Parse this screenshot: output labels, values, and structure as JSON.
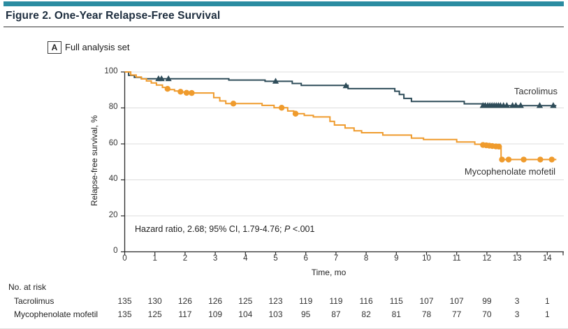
{
  "figure": {
    "title": "Figure 2. One-Year Relapse-Free Survival",
    "panel_label": "A",
    "panel_title": "Full analysis set",
    "accent_color": "#2B8CA1",
    "rule_color": "#3a3a3a"
  },
  "chart_data": {
    "type": "line",
    "subtype": "kaplan_meier_step",
    "xlabel": "Time, mo",
    "ylabel": "Relapse-free survival, %",
    "xlim": [
      0,
      14
    ],
    "ylim": [
      0,
      100
    ],
    "xticks": [
      0,
      1,
      2,
      3,
      4,
      5,
      6,
      7,
      8,
      9,
      10,
      11,
      12,
      13,
      14
    ],
    "yticks": [
      0,
      20,
      40,
      60,
      80,
      100
    ],
    "x_end": 14.3,
    "grid": "horizontal_light",
    "gridline_color": "#DCDCDC",
    "axis_color": "#2B2B2B",
    "annotation": {
      "text_main": "Hazard ratio, 2.68; 95% CI, 1.79-4.76; ",
      "text_italic": "P",
      "text_tail": " <.001"
    },
    "series": [
      {
        "name": "Tacrolimus",
        "color": "#2E4C59",
        "marker": "triangle",
        "steps": [
          [
            0,
            100
          ],
          [
            0.13,
            98.1
          ],
          [
            0.32,
            97.0
          ],
          [
            0.55,
            96.2
          ],
          [
            3.45,
            95.5
          ],
          [
            4.65,
            94.8
          ],
          [
            5.55,
            93.6
          ],
          [
            5.85,
            92.5
          ],
          [
            7.4,
            90.7
          ],
          [
            8.95,
            89.3
          ],
          [
            9.1,
            87.5
          ],
          [
            9.25,
            85.3
          ],
          [
            9.5,
            83.6
          ],
          [
            11.25,
            82.3
          ],
          [
            11.9,
            81.3
          ]
        ],
        "censor_marks": [
          [
            1.12,
            96.2
          ],
          [
            1.22,
            96.2
          ],
          [
            1.45,
            96.2
          ],
          [
            5.0,
            94.8
          ],
          [
            7.33,
            92.3
          ],
          [
            11.87,
            81.3
          ],
          [
            11.95,
            81.3
          ],
          [
            12.03,
            81.3
          ],
          [
            12.1,
            81.3
          ],
          [
            12.17,
            81.3
          ],
          [
            12.24,
            81.3
          ],
          [
            12.31,
            81.3
          ],
          [
            12.38,
            81.3
          ],
          [
            12.45,
            81.3
          ],
          [
            12.55,
            81.3
          ],
          [
            12.66,
            81.3
          ],
          [
            12.85,
            81.3
          ],
          [
            12.96,
            81.3
          ],
          [
            13.12,
            81.3
          ],
          [
            13.75,
            81.3
          ],
          [
            14.2,
            81.3
          ]
        ]
      },
      {
        "name": "Mycophenolate mofetil",
        "color": "#EF9B2D",
        "marker": "circle",
        "steps": [
          [
            0,
            100
          ],
          [
            0.2,
            98.3
          ],
          [
            0.38,
            97.2
          ],
          [
            0.55,
            96.1
          ],
          [
            0.72,
            95.0
          ],
          [
            0.88,
            93.9
          ],
          [
            1.05,
            92.7
          ],
          [
            1.25,
            91.4
          ],
          [
            1.45,
            90.2
          ],
          [
            1.65,
            89.4
          ],
          [
            1.85,
            88.8
          ],
          [
            2.05,
            88.3
          ],
          [
            2.95,
            85.7
          ],
          [
            3.15,
            83.9
          ],
          [
            3.35,
            82.4
          ],
          [
            4.55,
            81.4
          ],
          [
            4.95,
            80.1
          ],
          [
            5.4,
            78.3
          ],
          [
            5.6,
            76.8
          ],
          [
            5.95,
            75.8
          ],
          [
            6.25,
            75.0
          ],
          [
            6.8,
            72.5
          ],
          [
            6.95,
            70.5
          ],
          [
            7.3,
            68.8
          ],
          [
            7.6,
            67.3
          ],
          [
            7.85,
            66.2
          ],
          [
            8.55,
            64.9
          ],
          [
            9.5,
            63.2
          ],
          [
            9.9,
            62.4
          ],
          [
            11.0,
            61.1
          ],
          [
            11.6,
            59.8
          ],
          [
            11.95,
            59.2
          ],
          [
            12.2,
            58.6
          ],
          [
            12.47,
            51.3
          ]
        ],
        "censor_marks": [
          [
            1.42,
            90.6
          ],
          [
            1.85,
            89.0
          ],
          [
            2.05,
            88.4
          ],
          [
            2.22,
            88.3
          ],
          [
            3.6,
            82.4
          ],
          [
            5.2,
            80.1
          ],
          [
            5.66,
            76.8
          ],
          [
            11.87,
            59.4
          ],
          [
            11.98,
            59.2
          ],
          [
            12.08,
            59.0
          ],
          [
            12.18,
            58.8
          ],
          [
            12.3,
            58.6
          ],
          [
            12.4,
            58.5
          ],
          [
            12.5,
            51.3
          ],
          [
            12.72,
            51.3
          ],
          [
            13.22,
            51.3
          ],
          [
            13.77,
            51.3
          ],
          [
            14.15,
            51.3
          ]
        ]
      }
    ]
  },
  "risk_table": {
    "header": "No. at risk",
    "time_points": [
      0,
      1,
      2,
      3,
      4,
      5,
      6,
      7,
      8,
      9,
      10,
      11,
      12,
      13,
      14
    ],
    "rows": [
      {
        "label": "Tacrolimus",
        "values": [
          135,
          130,
          126,
          126,
          125,
          123,
          119,
          119,
          116,
          115,
          107,
          107,
          99,
          3,
          1
        ]
      },
      {
        "label": "Mycophenolate mofetil",
        "values": [
          135,
          125,
          117,
          109,
          104,
          103,
          95,
          87,
          82,
          81,
          78,
          77,
          70,
          3,
          1
        ]
      }
    ]
  }
}
